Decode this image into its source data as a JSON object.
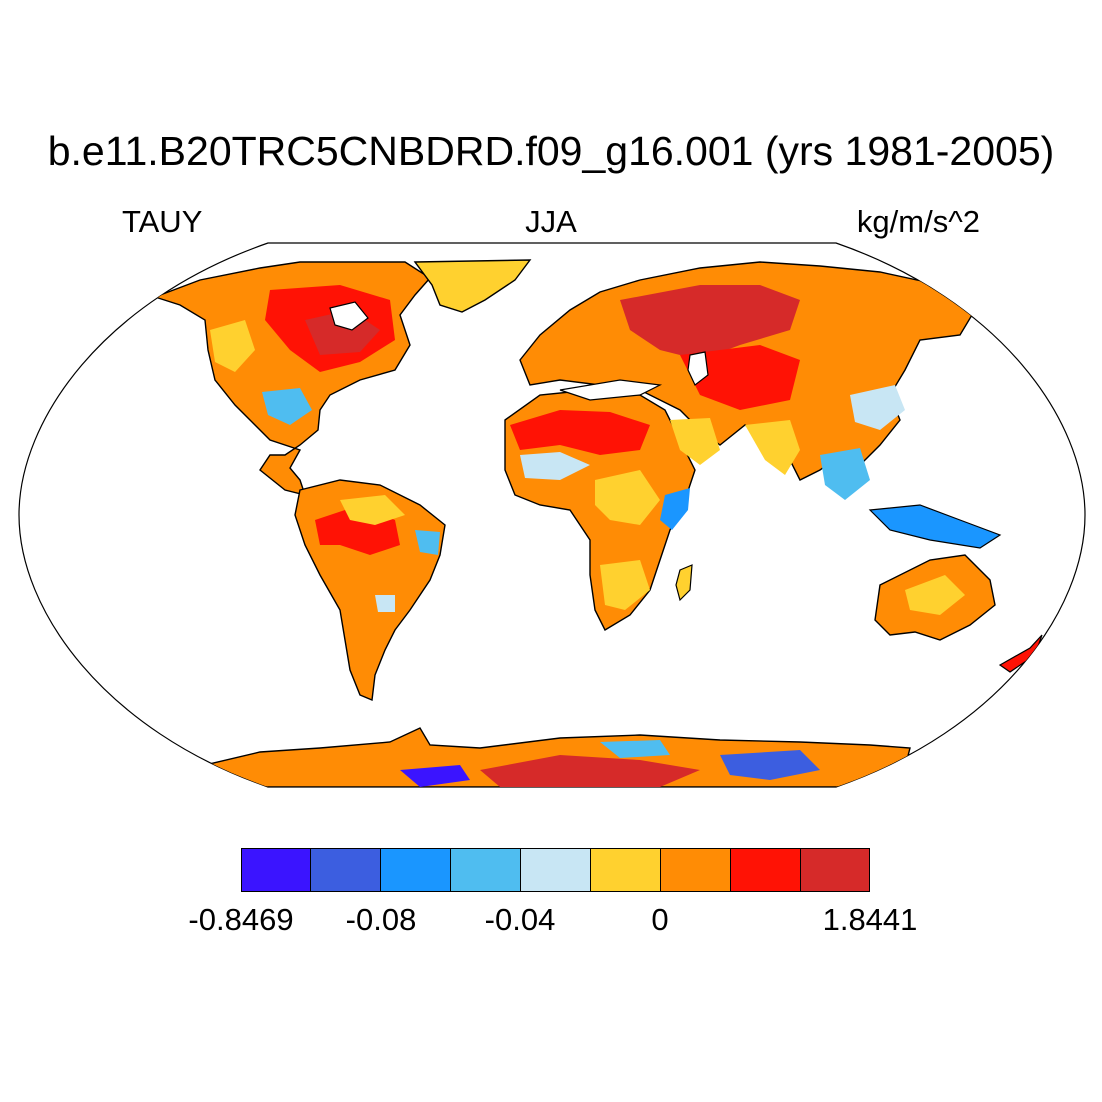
{
  "title": "b.e11.B20TRC5CNBDRD.f09_g16.001 (yrs 1981-2005)",
  "left_label": "TAUY",
  "center_label": "JJA",
  "right_label": "kg/m/s^2",
  "projection": "Robinson",
  "colorbar": {
    "colors": [
      "#3b14ff",
      "#3c5ee0",
      "#1a96ff",
      "#4fbdf0",
      "#c8e6f4",
      "#ffd12f",
      "#ff8c05",
      "#ff1205",
      "#d62a29"
    ],
    "labels": [
      "-0.8469",
      "-0.08",
      "-0.04",
      "0",
      "1.8441"
    ]
  }
}
